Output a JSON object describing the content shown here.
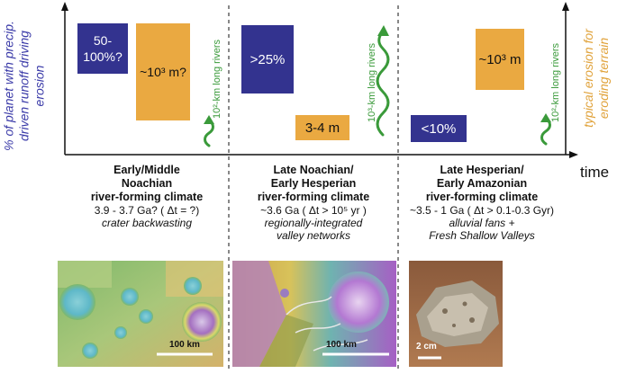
{
  "axes": {
    "y_left_label": "% of planet with precip. driven runoff driving erosion",
    "y_right_label": "typical erosion for eroding terrain",
    "x_label": "time"
  },
  "colors": {
    "blue": "#33338f",
    "orange": "#eaa941",
    "green": "#3a9a3a",
    "ylabel_left": "#3a3aa8",
    "ylabel_right": "#e0a23a"
  },
  "panels": [
    {
      "percent_box": "50-100%?",
      "erosion_box": "~10³ m?",
      "river_label": "10²-km long rivers",
      "title_l1": "Early/Middle",
      "title_l2": "Noachian",
      "title_l3": "river-forming climate",
      "age": "3.9 - 3.7 Ga? ( Δt = ?)",
      "desc_l1": "crater backwasting",
      "desc_l2": "",
      "scale": "100 km"
    },
    {
      "percent_box": ">25%",
      "erosion_box": "3-4 m",
      "river_label": "10³-km long rivers",
      "title_l1": "Late Noachian/",
      "title_l2": "Early Hesperian",
      "title_l3": "river-forming climate",
      "age": "~3.6 Ga ( Δt > 10⁵ yr )",
      "desc_l1": "regionally-integrated",
      "desc_l2": "valley networks",
      "scale": "100 km"
    },
    {
      "percent_box": "<10%",
      "erosion_box": "~10³ m",
      "river_label": "10²-km long rivers",
      "title_l1": "Late Hesperian/",
      "title_l2": "Early Amazonian",
      "title_l3": "river-forming climate",
      "age": "~3.5 - 1 Ga ( Δt > 0.1-0.3 Gyr)",
      "desc_l1": "alluvial fans +",
      "desc_l2": "Fresh Shallow Valleys",
      "scale": "2 cm"
    }
  ]
}
